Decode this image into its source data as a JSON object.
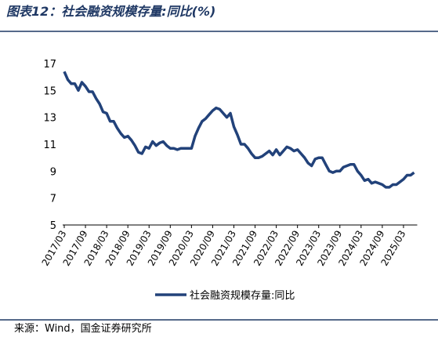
{
  "chart_data": {
    "type": "line",
    "title": "图表12：社会融资规模存量:同比(%)",
    "source": "来源：Wind，国金证券研究所",
    "categories": [
      "2017/03",
      null,
      null,
      null,
      null,
      null,
      "2017/09",
      null,
      null,
      null,
      null,
      null,
      "2018/03",
      null,
      null,
      null,
      null,
      null,
      "2018/09",
      null,
      null,
      null,
      null,
      null,
      "2019/03",
      null,
      null,
      null,
      null,
      null,
      "2019/09",
      null,
      null,
      null,
      null,
      null,
      "2020/03",
      null,
      null,
      null,
      null,
      null,
      "2020/09",
      null,
      null,
      null,
      null,
      null,
      "2021/03",
      null,
      null,
      null,
      null,
      null,
      "2021/09",
      null,
      null,
      null,
      null,
      null,
      "2022/03",
      null,
      null,
      null,
      null,
      null,
      "2022/09",
      null,
      null,
      null,
      null,
      null,
      "2023/03",
      null,
      null,
      null,
      null,
      null,
      "2023/09",
      null,
      null,
      null,
      null,
      null,
      "2024/03",
      null,
      null,
      null,
      null,
      null,
      "2024/09",
      null,
      null,
      null,
      null,
      null,
      "2025/03",
      null,
      null,
      null
    ],
    "series": [
      {
        "name": "社会融资规模存量:同比",
        "color": "#22427a",
        "values": [
          16.4,
          15.8,
          15.5,
          15.5,
          15.0,
          15.6,
          15.3,
          14.9,
          14.9,
          14.4,
          14.0,
          13.4,
          13.3,
          12.7,
          12.7,
          12.2,
          11.8,
          11.5,
          11.6,
          11.3,
          10.9,
          10.4,
          10.3,
          10.8,
          10.7,
          11.2,
          10.9,
          11.1,
          11.2,
          10.9,
          10.7,
          10.7,
          10.6,
          10.7,
          10.7,
          10.7,
          10.7,
          11.6,
          12.2,
          12.7,
          12.9,
          13.2,
          13.5,
          13.7,
          13.6,
          13.3,
          13.0,
          13.3,
          12.3,
          11.7,
          11.0,
          11.0,
          10.7,
          10.3,
          10.0,
          10.0,
          10.1,
          10.3,
          10.5,
          10.2,
          10.6,
          10.2,
          10.5,
          10.8,
          10.7,
          10.5,
          10.6,
          10.3,
          10.0,
          9.6,
          9.4,
          9.9,
          10.0,
          10.0,
          9.5,
          9.0,
          8.9,
          9.0,
          9.0,
          9.3,
          9.4,
          9.5,
          9.5,
          9.0,
          8.7,
          8.3,
          8.4,
          8.1,
          8.2,
          8.1,
          8.0,
          7.8,
          7.8,
          8.0,
          8.0,
          8.2,
          8.4,
          8.7,
          8.7,
          8.9
        ]
      }
    ],
    "ylim": [
      5,
      17
    ],
    "yticks": [
      5,
      7,
      9,
      11,
      13,
      15,
      17
    ]
  }
}
